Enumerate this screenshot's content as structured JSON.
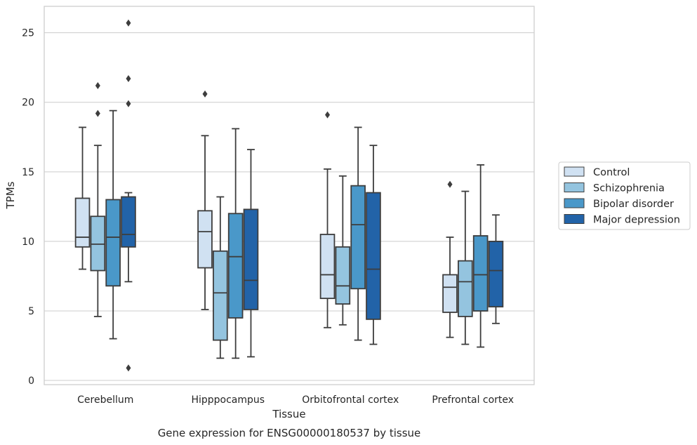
{
  "chart_data": {
    "type": "box",
    "caption": "Gene expression for ENSG00000180537 by tissue",
    "xlabel": "Tissue",
    "ylabel": "TPMs",
    "ylim": [
      -0.3,
      26.9
    ],
    "yticks": [
      0,
      5,
      10,
      15,
      20,
      25
    ],
    "grid": true,
    "legend_placement": "right",
    "categories": [
      "Cerebellum",
      "Hipppocampus",
      "Orbitofrontal cortex",
      "Prefrontal cortex"
    ],
    "series": [
      {
        "name": "Control",
        "color": "#d0e1f2",
        "boxes": [
          {
            "whisker_low": 8.0,
            "q1": 9.6,
            "median": 10.3,
            "q3": 13.1,
            "whisker_high": 18.2,
            "outliers": []
          },
          {
            "whisker_low": 5.1,
            "q1": 8.1,
            "median": 10.7,
            "q3": 12.2,
            "whisker_high": 17.6,
            "outliers": [
              20.6
            ]
          },
          {
            "whisker_low": 3.8,
            "q1": 5.9,
            "median": 7.6,
            "q3": 10.5,
            "whisker_high": 15.2,
            "outliers": [
              19.1
            ]
          },
          {
            "whisker_low": 3.1,
            "q1": 4.9,
            "median": 6.7,
            "q3": 7.6,
            "whisker_high": 10.3,
            "outliers": [
              14.1
            ]
          }
        ]
      },
      {
        "name": "Schizophrenia",
        "color": "#94c4df",
        "boxes": [
          {
            "whisker_low": 4.6,
            "q1": 7.9,
            "median": 9.8,
            "q3": 11.8,
            "whisker_high": 16.9,
            "outliers": [
              19.2,
              21.2
            ]
          },
          {
            "whisker_low": 1.6,
            "q1": 2.9,
            "median": 6.3,
            "q3": 9.3,
            "whisker_high": 13.2,
            "outliers": []
          },
          {
            "whisker_low": 4.0,
            "q1": 5.5,
            "median": 6.8,
            "q3": 9.6,
            "whisker_high": 14.7,
            "outliers": []
          },
          {
            "whisker_low": 2.6,
            "q1": 4.6,
            "median": 7.1,
            "q3": 8.6,
            "whisker_high": 13.6,
            "outliers": []
          }
        ]
      },
      {
        "name": "Bipolar disorder",
        "color": "#4a98c9",
        "boxes": [
          {
            "whisker_low": 3.0,
            "q1": 6.8,
            "median": 10.3,
            "q3": 13.0,
            "whisker_high": 19.4,
            "outliers": []
          },
          {
            "whisker_low": 1.6,
            "q1": 4.5,
            "median": 8.9,
            "q3": 12.0,
            "whisker_high": 18.1,
            "outliers": []
          },
          {
            "whisker_low": 2.9,
            "q1": 6.6,
            "median": 11.2,
            "q3": 14.0,
            "whisker_high": 18.2,
            "outliers": []
          },
          {
            "whisker_low": 2.4,
            "q1": 5.0,
            "median": 7.6,
            "q3": 10.4,
            "whisker_high": 15.5,
            "outliers": []
          }
        ]
      },
      {
        "name": "Major depression",
        "color": "#2263a8",
        "boxes": [
          {
            "whisker_low": 7.1,
            "q1": 9.6,
            "median": 10.5,
            "q3": 13.2,
            "whisker_high": 13.5,
            "outliers": [
              0.9,
              19.9,
              21.7,
              25.7
            ]
          },
          {
            "whisker_low": 1.7,
            "q1": 5.1,
            "median": 7.2,
            "q3": 12.3,
            "whisker_high": 16.6,
            "outliers": []
          },
          {
            "whisker_low": 2.6,
            "q1": 4.4,
            "median": 8.0,
            "q3": 13.5,
            "whisker_high": 16.9,
            "outliers": []
          },
          {
            "whisker_low": 4.1,
            "q1": 5.3,
            "median": 7.9,
            "q3": 10.0,
            "whisker_high": 11.9,
            "outliers": []
          }
        ]
      }
    ]
  }
}
